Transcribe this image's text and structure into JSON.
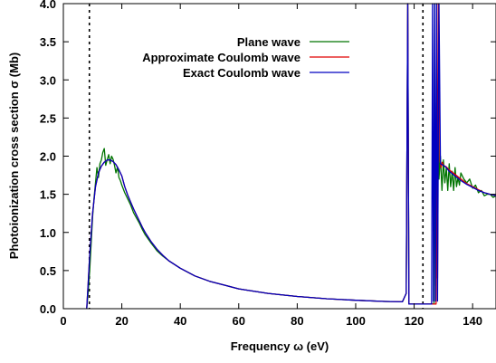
{
  "chart_data": {
    "type": "line",
    "xlabel": "Frequency ω (eV)",
    "ylabel": "Photoionization cross section σ (Mb)",
    "xlim": [
      0,
      148
    ],
    "ylim": [
      0.0,
      4.0
    ],
    "x_ticks": [
      0,
      20,
      40,
      60,
      80,
      100,
      120,
      140
    ],
    "x_tick_labels": [
      "0",
      "20",
      "40",
      "60",
      "80",
      "100",
      "120",
      "140"
    ],
    "y_ticks": [
      0.0,
      0.5,
      1.0,
      1.5,
      2.0,
      2.5,
      3.0,
      3.5,
      4.0
    ],
    "y_tick_labels": [
      "0.0",
      "0.5",
      "1.0",
      "1.5",
      "2.0",
      "2.5",
      "3.0",
      "3.5",
      "4.0"
    ],
    "legend_position": "top-right",
    "grid": false,
    "vlines": [
      8.9,
      123.0
    ],
    "series": [
      {
        "name": "Plane wave",
        "color": "#007400",
        "x": [
          8.0,
          8.5,
          9.0,
          9.5,
          10.0,
          10.5,
          11.0,
          11.5,
          12.0,
          12.5,
          13.0,
          13.5,
          14.0,
          14.5,
          15.0,
          15.5,
          16.0,
          16.5,
          17.0,
          17.5,
          18.0,
          18.5,
          19.0,
          19.5,
          20.0,
          21.0,
          22.0,
          23.0,
          24.0,
          25.0,
          26.0,
          27.0,
          28.0,
          30.0,
          32.0,
          34.0,
          36.0,
          40.0,
          45.0,
          50.0,
          55.0,
          60.0,
          70.0,
          80.0,
          90.0,
          100.0,
          110.0,
          116.0,
          117.3,
          117.8,
          118.2,
          119.0,
          122.0,
          125.0,
          126.8,
          127.0,
          127.3,
          127.6,
          127.9,
          128.2,
          128.5,
          129.0,
          129.5,
          130.0,
          130.5,
          131.0,
          131.5,
          132.0,
          132.5,
          133.0,
          133.5,
          134.0,
          134.5,
          135.0,
          135.5,
          136.0,
          137.0,
          138.0,
          139.0,
          140.0,
          141.0,
          142.0,
          143.0,
          144.0,
          145.0,
          146.0,
          147.0,
          148.0
        ],
        "y": [
          0.0,
          0.22,
          0.5,
          0.85,
          1.2,
          1.45,
          1.65,
          1.85,
          1.72,
          1.9,
          1.95,
          2.05,
          2.1,
          1.88,
          1.95,
          2.02,
          1.9,
          2.0,
          1.96,
          1.88,
          1.78,
          1.86,
          1.72,
          1.68,
          1.62,
          1.52,
          1.44,
          1.36,
          1.26,
          1.19,
          1.12,
          1.04,
          0.97,
          0.86,
          0.76,
          0.69,
          0.63,
          0.53,
          0.43,
          0.36,
          0.31,
          0.26,
          0.2,
          0.16,
          0.13,
          0.11,
          0.095,
          0.09,
          0.2,
          4.0,
          0.06,
          0.06,
          0.06,
          0.06,
          0.06,
          4.0,
          0.3,
          2.7,
          2.0,
          2.75,
          1.7,
          2.0,
          1.55,
          1.95,
          1.65,
          1.85,
          1.55,
          1.9,
          1.6,
          1.8,
          1.55,
          1.85,
          1.6,
          1.72,
          1.62,
          1.78,
          1.7,
          1.65,
          1.7,
          1.58,
          1.62,
          1.52,
          1.55,
          1.48,
          1.5,
          1.5,
          1.46,
          1.48
        ]
      },
      {
        "name": "Approximate Coulomb wave",
        "color": "#e00000",
        "x": [
          8.0,
          8.5,
          9.0,
          10.0,
          11.0,
          12.0,
          13.0,
          14.0,
          15.0,
          16.0,
          17.0,
          18.0,
          19.0,
          20.0,
          21.0,
          22.0,
          23.0,
          24.0,
          25.0,
          26.0,
          27.0,
          28.0,
          30.0,
          32.0,
          34.0,
          36.0,
          40.0,
          45.0,
          50.0,
          55.0,
          60.0,
          70.0,
          80.0,
          90.0,
          100.0,
          110.0,
          116.0,
          117.3,
          117.8,
          118.2,
          119.0,
          122.0,
          125.0,
          127.5,
          127.8,
          128.0,
          128.4,
          128.8,
          129.2,
          129.6,
          130.0,
          131.0,
          132.0,
          134.0,
          136.0,
          138.0,
          140.0,
          142.0,
          144.0,
          146.0,
          148.0
        ],
        "y": [
          0.0,
          0.35,
          0.7,
          1.25,
          1.6,
          1.78,
          1.87,
          1.92,
          1.95,
          1.95,
          1.93,
          1.89,
          1.82,
          1.74,
          1.6,
          1.49,
          1.4,
          1.31,
          1.23,
          1.15,
          1.07,
          1.0,
          0.88,
          0.78,
          0.7,
          0.63,
          0.53,
          0.43,
          0.36,
          0.31,
          0.26,
          0.2,
          0.16,
          0.13,
          0.11,
          0.095,
          0.09,
          0.2,
          4.0,
          0.06,
          0.06,
          0.06,
          0.06,
          0.06,
          4.0,
          0.4,
          4.0,
          1.95,
          1.85,
          1.92,
          1.88,
          1.86,
          1.82,
          1.76,
          1.7,
          1.64,
          1.6,
          1.56,
          1.52,
          1.5,
          1.48
        ]
      },
      {
        "name": "Exact Coulomb wave",
        "color": "#0000c0",
        "x": [
          8.0,
          8.5,
          9.0,
          10.0,
          11.0,
          12.0,
          13.0,
          14.0,
          15.0,
          16.0,
          17.0,
          18.0,
          19.0,
          20.0,
          21.0,
          22.0,
          23.0,
          24.0,
          25.0,
          26.0,
          27.0,
          28.0,
          30.0,
          32.0,
          34.0,
          36.0,
          40.0,
          45.0,
          50.0,
          55.0,
          60.0,
          70.0,
          80.0,
          90.0,
          100.0,
          110.0,
          116.0,
          117.3,
          117.8,
          118.2,
          119.0,
          122.0,
          125.0,
          126.0,
          126.3,
          126.6,
          127.0,
          127.3,
          127.7,
          128.0,
          128.5,
          129.0,
          130.0,
          131.0,
          132.0,
          134.0,
          136.0,
          138.0,
          140.0,
          142.0,
          144.0,
          146.0,
          148.0
        ],
        "y": [
          0.0,
          0.35,
          0.7,
          1.25,
          1.6,
          1.78,
          1.87,
          1.92,
          1.95,
          1.95,
          1.93,
          1.89,
          1.82,
          1.74,
          1.6,
          1.49,
          1.4,
          1.31,
          1.23,
          1.15,
          1.07,
          1.0,
          0.88,
          0.78,
          0.7,
          0.63,
          0.53,
          0.43,
          0.36,
          0.31,
          0.26,
          0.2,
          0.16,
          0.13,
          0.11,
          0.095,
          0.09,
          0.2,
          4.0,
          0.06,
          0.06,
          0.06,
          0.06,
          0.06,
          4.0,
          0.1,
          4.0,
          0.1,
          4.0,
          0.1,
          4.0,
          1.9,
          1.88,
          1.85,
          1.8,
          1.74,
          1.68,
          1.63,
          1.59,
          1.55,
          1.52,
          1.5,
          1.48
        ]
      }
    ]
  }
}
